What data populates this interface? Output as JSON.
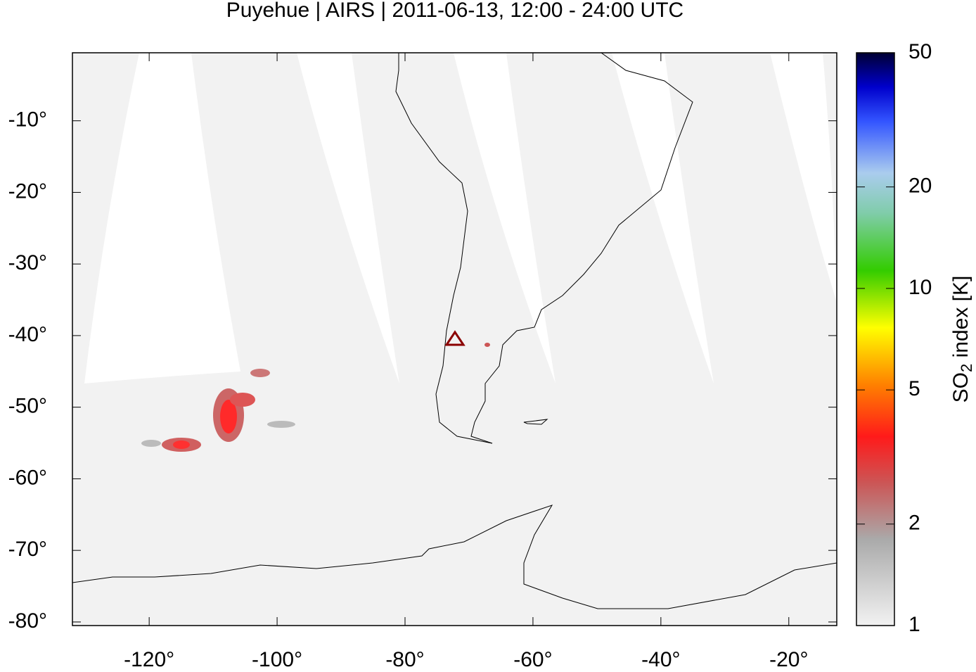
{
  "chart_data": {
    "type": "map",
    "title": "Puyehue | AIRS | 2011-06-13, 12:00 - 24:00 UTC",
    "xlim": [
      -132,
      -12.5
    ],
    "ylim": [
      -80.5,
      -0.5
    ],
    "xticks": [
      {
        "value": -120,
        "label": "-120°"
      },
      {
        "value": -100,
        "label": "-100°"
      },
      {
        "value": -80,
        "label": "-80°"
      },
      {
        "value": -60,
        "label": "-60°"
      },
      {
        "value": -40,
        "label": "-40°"
      },
      {
        "value": -20,
        "label": "-20°"
      }
    ],
    "yticks": [
      {
        "value": -10,
        "label": "-10°"
      },
      {
        "value": -20,
        "label": "-20°"
      },
      {
        "value": -30,
        "label": "-30°"
      },
      {
        "value": -40,
        "label": "-40°"
      },
      {
        "value": -50,
        "label": "-50°"
      },
      {
        "value": -60,
        "label": "-60°"
      },
      {
        "value": -70,
        "label": "-70°"
      },
      {
        "value": -80,
        "label": "-80°"
      }
    ],
    "colorbar": {
      "label_main": "SO",
      "label_sub": "2",
      "label_rest": " index [K]",
      "log": true,
      "lim": [
        1,
        50
      ],
      "ticks": [
        1,
        2,
        5,
        10,
        20,
        50
      ]
    }
  }
}
